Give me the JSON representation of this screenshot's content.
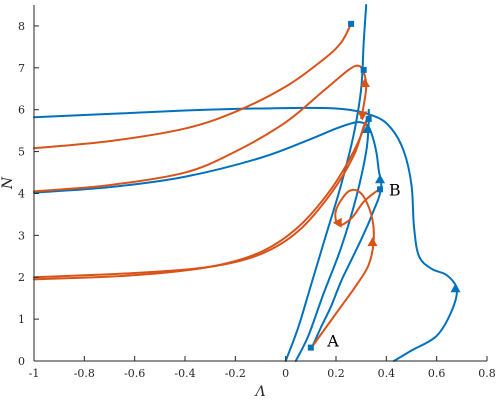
{
  "chart_data": {
    "type": "line",
    "title": "",
    "xlabel": "Λ",
    "ylabel": "N",
    "xlim": [
      -1,
      0.8
    ],
    "ylim": [
      0,
      8.5
    ],
    "xticks": [
      -1,
      -0.8,
      -0.6,
      -0.4,
      -0.2,
      0,
      0.2,
      0.4,
      0.6,
      0.8
    ],
    "xtick_labels": [
      "-1",
      "-0.8",
      "-0.6",
      "-0.4",
      "-0.2",
      "0",
      "0.2",
      "0.4",
      "0.6",
      "0.8"
    ],
    "yticks": [
      0,
      1,
      2,
      3,
      4,
      5,
      6,
      7,
      8
    ],
    "ytick_labels": [
      "0",
      "1",
      "2",
      "3",
      "4",
      "5",
      "6",
      "7",
      "8"
    ],
    "grid": false,
    "legend": "none",
    "colors": {
      "blue": "#0072BD",
      "orange": "#D95319",
      "axis": "#262626"
    },
    "series": [
      {
        "color": "blue",
        "points": [
          [
            0.0,
            0.0
          ],
          [
            0.05,
            0.8
          ],
          [
            0.1,
            1.8
          ],
          [
            0.16,
            3.0
          ],
          [
            0.22,
            4.2
          ],
          [
            0.27,
            5.4
          ],
          [
            0.3,
            6.5
          ],
          [
            0.31,
            7.6
          ],
          [
            0.32,
            8.5
          ]
        ]
      },
      {
        "color": "blue",
        "points": [
          [
            0.04,
            0.0
          ],
          [
            0.09,
            0.6
          ],
          [
            0.15,
            1.6
          ],
          [
            0.22,
            2.7
          ],
          [
            0.28,
            3.9
          ],
          [
            0.32,
            5.0
          ],
          [
            0.33,
            5.7
          ],
          [
            0.33,
            6.0
          ]
        ]
      },
      {
        "color": "blue",
        "points": [
          [
            -1.0,
            5.82
          ],
          [
            -0.7,
            5.9
          ],
          [
            -0.4,
            5.98
          ],
          [
            -0.1,
            6.03
          ],
          [
            0.2,
            6.03
          ],
          [
            0.35,
            5.85
          ],
          [
            0.42,
            5.55
          ],
          [
            0.47,
            5.0
          ],
          [
            0.5,
            4.2
          ],
          [
            0.51,
            3.2
          ],
          [
            0.53,
            2.5
          ],
          [
            0.58,
            2.2
          ],
          [
            0.64,
            2.05
          ],
          [
            0.68,
            1.72
          ],
          [
            0.66,
            1.2
          ],
          [
            0.6,
            0.6
          ],
          [
            0.5,
            0.25
          ],
          [
            0.43,
            0.0
          ]
        ]
      },
      {
        "color": "blue",
        "points": [
          [
            -1.0,
            4.02
          ],
          [
            -0.7,
            4.15
          ],
          [
            -0.4,
            4.4
          ],
          [
            -0.1,
            4.85
          ],
          [
            0.1,
            5.3
          ],
          [
            0.2,
            5.55
          ],
          [
            0.28,
            5.7
          ],
          [
            0.32,
            5.65
          ],
          [
            0.34,
            5.45
          ],
          [
            0.36,
            5.0
          ],
          [
            0.37,
            4.55
          ],
          [
            0.38,
            4.2
          ],
          [
            0.37,
            3.9
          ],
          [
            0.35,
            3.6
          ],
          [
            0.33,
            3.3
          ],
          [
            0.3,
            2.9
          ],
          [
            0.26,
            2.4
          ],
          [
            0.22,
            1.9
          ],
          [
            0.18,
            1.3
          ],
          [
            0.14,
            0.8
          ],
          [
            0.11,
            0.4
          ],
          [
            0.1,
            0.3
          ]
        ]
      },
      {
        "color": "orange",
        "points": [
          [
            -1.0,
            5.08
          ],
          [
            -0.7,
            5.25
          ],
          [
            -0.4,
            5.55
          ],
          [
            -0.2,
            5.95
          ],
          [
            0.0,
            6.55
          ],
          [
            0.15,
            7.2
          ],
          [
            0.22,
            7.6
          ],
          [
            0.26,
            8.05
          ]
        ]
      },
      {
        "color": "orange",
        "points": [
          [
            -1.0,
            4.05
          ],
          [
            -0.7,
            4.2
          ],
          [
            -0.4,
            4.5
          ],
          [
            -0.2,
            5.0
          ],
          [
            0.0,
            5.7
          ],
          [
            0.15,
            6.45
          ],
          [
            0.25,
            6.95
          ],
          [
            0.29,
            7.05
          ],
          [
            0.31,
            6.9
          ],
          [
            0.32,
            6.55
          ],
          [
            0.31,
            6.1
          ],
          [
            0.3,
            5.8
          ]
        ]
      },
      {
        "color": "orange",
        "points": [
          [
            -1.0,
            2.0
          ],
          [
            -0.6,
            2.1
          ],
          [
            -0.3,
            2.25
          ],
          [
            -0.1,
            2.55
          ],
          [
            0.05,
            3.1
          ],
          [
            0.18,
            4.0
          ],
          [
            0.27,
            4.9
          ],
          [
            0.31,
            5.6
          ],
          [
            0.33,
            5.85
          ]
        ]
      },
      {
        "color": "orange",
        "points": [
          [
            -1.0,
            1.95
          ],
          [
            -0.6,
            2.05
          ],
          [
            -0.3,
            2.25
          ],
          [
            -0.1,
            2.6
          ],
          [
            0.05,
            3.2
          ],
          [
            0.18,
            4.1
          ],
          [
            0.27,
            5.0
          ],
          [
            0.32,
            5.7
          ],
          [
            0.33,
            5.85
          ]
        ]
      },
      {
        "color": "orange",
        "points": [
          [
            0.1,
            0.3
          ],
          [
            0.16,
            0.8
          ],
          [
            0.22,
            1.3
          ],
          [
            0.28,
            1.8
          ],
          [
            0.33,
            2.3
          ],
          [
            0.35,
            2.9
          ],
          [
            0.34,
            3.5
          ],
          [
            0.3,
            4.0
          ],
          [
            0.25,
            4.05
          ],
          [
            0.2,
            3.6
          ],
          [
            0.21,
            3.25
          ],
          [
            0.26,
            3.4
          ],
          [
            0.31,
            3.8
          ],
          [
            0.36,
            4.05
          ],
          [
            0.38,
            4.12
          ]
        ]
      }
    ],
    "square_markers": [
      {
        "x": 0.26,
        "y": 8.05,
        "color": "blue"
      },
      {
        "x": 0.31,
        "y": 6.95,
        "color": "blue"
      },
      {
        "x": 0.33,
        "y": 5.78,
        "color": "blue"
      },
      {
        "x": 0.375,
        "y": 4.1,
        "color": "blue"
      },
      {
        "x": 0.1,
        "y": 0.32,
        "color": "blue"
      }
    ],
    "triangle_markers": [
      {
        "x": 0.325,
        "y": 5.55,
        "color": "blue",
        "dir": "up"
      },
      {
        "x": 0.375,
        "y": 4.35,
        "color": "blue",
        "dir": "up"
      },
      {
        "x": 0.675,
        "y": 1.75,
        "color": "blue",
        "dir": "up"
      },
      {
        "x": 0.315,
        "y": 6.65,
        "color": "orange",
        "dir": "up"
      },
      {
        "x": 0.345,
        "y": 2.85,
        "color": "orange",
        "dir": "up"
      },
      {
        "x": 0.305,
        "y": 5.85,
        "color": "orange",
        "dir": "down"
      },
      {
        "x": 0.205,
        "y": 3.3,
        "color": "orange",
        "dir": "left"
      }
    ],
    "annotations": [
      {
        "text": "A",
        "x": 0.165,
        "y": 0.35
      },
      {
        "text": "B",
        "x": 0.41,
        "y": 3.95
      }
    ]
  }
}
